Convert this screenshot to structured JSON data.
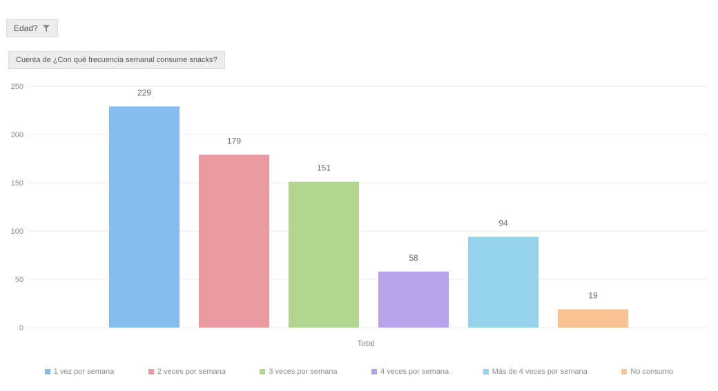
{
  "filter": {
    "label": "Edad?",
    "icon": "filter-icon"
  },
  "value_field": {
    "label": "Cuenta de ¿Con qué frecuencia semanal consume snacks?"
  },
  "chart_data": {
    "type": "bar",
    "categories": [
      "Total"
    ],
    "xlabel": "Total",
    "ylabel": "",
    "ylim": [
      0,
      250
    ],
    "yticks": [
      0,
      50,
      100,
      150,
      200,
      250
    ],
    "grid": true,
    "legend_position": "bottom",
    "series": [
      {
        "name": "1 vez por semana",
        "values": [
          229
        ],
        "color": "#85bdef"
      },
      {
        "name": "2 veces por semana",
        "values": [
          179
        ],
        "color": "#ec9aa1"
      },
      {
        "name": "3 veces por semana",
        "values": [
          151
        ],
        "color": "#b2d58f"
      },
      {
        "name": "4 veces por semana",
        "values": [
          58
        ],
        "color": "#b7a3ea"
      },
      {
        "name": "Más de 4 veces por semana",
        "values": [
          94
        ],
        "color": "#95d2ec"
      },
      {
        "name": "No consumo",
        "values": [
          19
        ],
        "color": "#f8c293"
      }
    ]
  }
}
